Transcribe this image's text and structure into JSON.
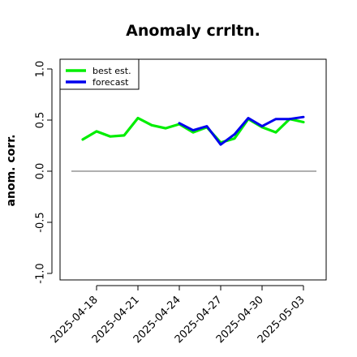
{
  "chart_data": {
    "type": "line",
    "title": "Anomaly crrltn.",
    "ylabel": "anom. corr.",
    "xlabel": "",
    "ylim": [
      -1.0,
      1.0
    ],
    "yticks": [
      "-1.0",
      "-0.5",
      "0.0",
      "0.5",
      "1.0"
    ],
    "xticks": [
      "2025-04-18",
      "2025-04-21",
      "2025-04-24",
      "2025-04-27",
      "2025-04-30",
      "2025-05-03"
    ],
    "highlighted_xtick": "2025-04-24",
    "highlight_color": "#228B22",
    "reference_line": 0.0,
    "reference_color": "#808080",
    "legend_position": "top-left",
    "series": [
      {
        "name": "best est.",
        "color": "#00ee00",
        "x": [
          "2025-04-17",
          "2025-04-18",
          "2025-04-19",
          "2025-04-20",
          "2025-04-21",
          "2025-04-22",
          "2025-04-23",
          "2025-04-24",
          "2025-04-25",
          "2025-04-26",
          "2025-04-27",
          "2025-04-28",
          "2025-04-29",
          "2025-04-30",
          "2025-05-01",
          "2025-05-02",
          "2025-05-03"
        ],
        "values": [
          0.31,
          0.39,
          0.34,
          0.35,
          0.52,
          0.45,
          0.42,
          0.46,
          0.38,
          0.43,
          0.28,
          0.32,
          0.51,
          0.43,
          0.38,
          0.51,
          0.48
        ]
      },
      {
        "name": "forecast",
        "color": "#0000ee",
        "x": [
          "2025-04-24",
          "2025-04-25",
          "2025-04-26",
          "2025-04-27",
          "2025-04-28",
          "2025-04-29",
          "2025-04-30",
          "2025-05-01",
          "2025-05-02",
          "2025-05-03"
        ],
        "values": [
          0.47,
          0.4,
          0.44,
          0.26,
          0.36,
          0.52,
          0.44,
          0.51,
          0.51,
          0.53
        ]
      }
    ]
  }
}
